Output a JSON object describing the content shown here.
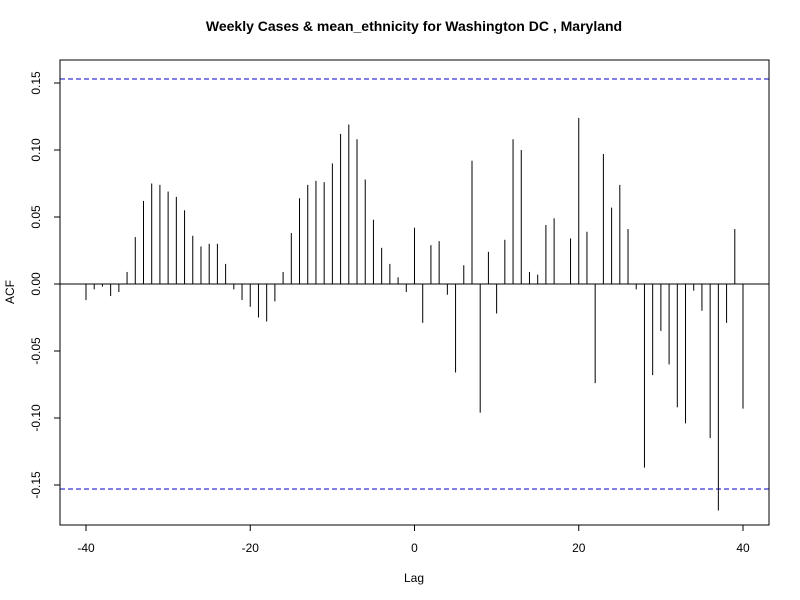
{
  "chart_data": {
    "type": "bar",
    "title": "Weekly Cases & mean_ethnicity for Washington DC , Maryland",
    "xlabel": "Lag",
    "ylabel": "ACF",
    "xlim": [
      -40,
      40
    ],
    "ylim": [
      -0.17,
      0.16
    ],
    "xticks": [
      -40,
      -20,
      0,
      20,
      40
    ],
    "xtick_labels": [
      "-40",
      "-20",
      "0",
      "20",
      "40"
    ],
    "yticks": [
      -0.15,
      -0.1,
      -0.05,
      0.0,
      0.05,
      0.1,
      0.15
    ],
    "ytick_labels": [
      "-0.15",
      "-0.10",
      "-0.05",
      "0.00",
      "0.05",
      "0.10",
      "0.15"
    ],
    "confidence_band": [
      0.153,
      -0.153
    ],
    "grid": false,
    "colors": {
      "bars": "#000000",
      "ci": "#0000cc",
      "zero_line": "#000000"
    },
    "lags": [
      -40,
      -39,
      -38,
      -37,
      -36,
      -35,
      -34,
      -33,
      -32,
      -31,
      -30,
      -29,
      -28,
      -27,
      -26,
      -25,
      -24,
      -23,
      -22,
      -21,
      -20,
      -19,
      -18,
      -17,
      -16,
      -15,
      -14,
      -13,
      -12,
      -11,
      -10,
      -9,
      -8,
      -7,
      -6,
      -5,
      -4,
      -3,
      -2,
      -1,
      0,
      1,
      2,
      3,
      4,
      5,
      6,
      7,
      8,
      9,
      10,
      11,
      12,
      13,
      14,
      15,
      16,
      17,
      18,
      19,
      20,
      21,
      22,
      23,
      24,
      25,
      26,
      27,
      28,
      29,
      30,
      31,
      32,
      33,
      34,
      35,
      36,
      37,
      38,
      39,
      40
    ],
    "values": [
      -0.012,
      -0.004,
      -0.002,
      -0.009,
      -0.006,
      0.009,
      0.035,
      0.062,
      0.075,
      0.074,
      0.069,
      0.065,
      0.055,
      0.036,
      0.028,
      0.03,
      0.03,
      0.015,
      -0.004,
      -0.012,
      -0.017,
      -0.025,
      -0.028,
      -0.013,
      0.009,
      0.038,
      0.064,
      0.074,
      0.077,
      0.076,
      0.09,
      0.112,
      0.119,
      0.108,
      0.078,
      0.048,
      0.027,
      0.015,
      0.005,
      -0.006,
      0.042,
      -0.029,
      0.029,
      0.032,
      -0.008,
      -0.066,
      0.014,
      0.092,
      -0.096,
      0.024,
      -0.022,
      0.033,
      0.108,
      0.1,
      0.009,
      0.007,
      0.044,
      0.049,
      0.0,
      0.034,
      0.124,
      0.039,
      -0.074,
      0.097,
      0.057,
      0.074,
      0.041,
      -0.004,
      -0.137,
      -0.068,
      -0.035,
      -0.06,
      -0.092,
      -0.104,
      -0.005,
      -0.02,
      -0.115,
      -0.169,
      -0.029,
      0.041,
      -0.093
    ]
  }
}
